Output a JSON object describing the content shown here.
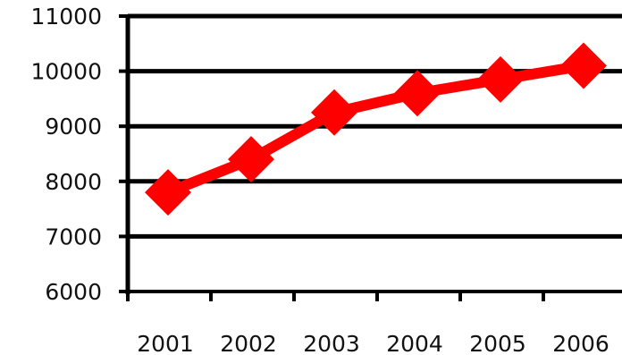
{
  "chart_data": {
    "type": "line",
    "title": "",
    "xlabel": "",
    "ylabel": "",
    "categories": [
      "2001",
      "2002",
      "2003",
      "2004",
      "2005",
      "2006"
    ],
    "series": [
      {
        "values": [
          7800,
          8400,
          9250,
          9600,
          9850,
          10100
        ]
      }
    ],
    "ylim": [
      6000,
      11000
    ],
    "yticks": [
      "6000",
      "7000",
      "8000",
      "9000",
      "10000",
      "11000"
    ],
    "grid": true,
    "legend": "none",
    "colors": {
      "line": "#ff0000",
      "marker": "#ff0000",
      "grid": "#000000",
      "axis": "#000000"
    }
  }
}
